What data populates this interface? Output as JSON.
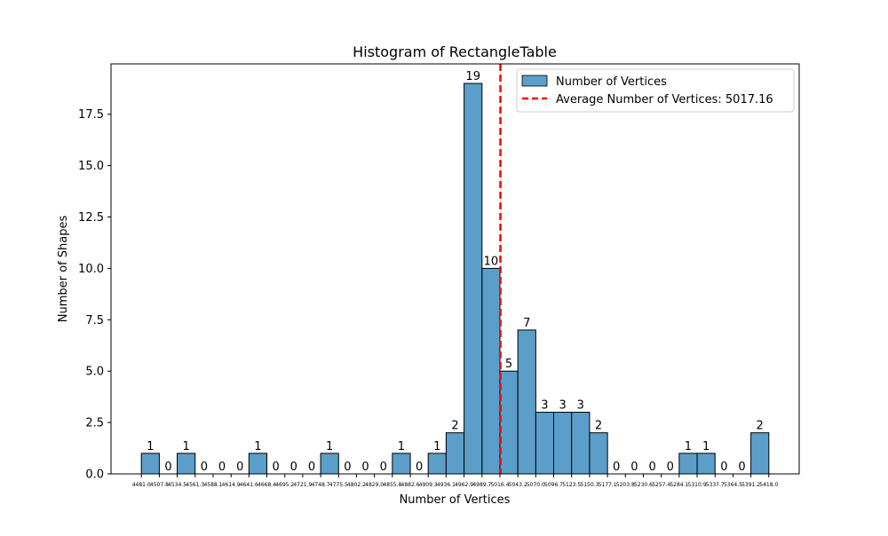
{
  "chart_data": {
    "type": "bar",
    "title": "Histogram of RectangleTable",
    "xlabel": "Number of Vertices",
    "ylabel": "Number of Shapes",
    "ylim": [
      0,
      19.95
    ],
    "yticks": [
      "0.0",
      "2.5",
      "5.0",
      "7.5",
      "10.0",
      "12.5",
      "15.0",
      "17.5"
    ],
    "ytick_values": [
      0,
      2.5,
      5,
      7.5,
      10,
      12.5,
      15,
      17.5
    ],
    "bin_edges": [
      4481.0,
      4507.8,
      4534.5,
      4561.3,
      4588.1,
      4614.9,
      4641.6,
      4668.4,
      4695.2,
      4721.9,
      4748.7,
      4775.5,
      4802.2,
      4829.0,
      4855.8,
      4882.6,
      4909.3,
      4936.1,
      4962.9,
      4989.7,
      5016.4,
      5043.2,
      5070.0,
      5096.7,
      5123.5,
      5150.3,
      5177.1,
      5203.8,
      5230.6,
      5257.4,
      5284.1,
      5310.9,
      5337.7,
      5364.5,
      5391.2,
      5418.0
    ],
    "xtick_labels": [
      "4481.0",
      "4507.8",
      "4534.5",
      "4561.3",
      "4588.1",
      "4614.9",
      "4641.6",
      "4668.4",
      "4695.2",
      "4721.9",
      "4748.7",
      "4775.5",
      "4802.2",
      "4829.0",
      "4855.8",
      "4882.6",
      "4909.3",
      "4936.1",
      "4962.9",
      "4989.7",
      "5016.4",
      "5043.2",
      "5070.0",
      "5096.7",
      "5123.5",
      "5150.3",
      "5177.1",
      "5203.8",
      "5230.6",
      "5257.4",
      "5284.1",
      "5310.9",
      "5337.7",
      "5364.5",
      "5391.2",
      "5418.0"
    ],
    "values": [
      1,
      0,
      1,
      0,
      0,
      0,
      1,
      0,
      0,
      0,
      1,
      0,
      0,
      0,
      1,
      0,
      1,
      2,
      19,
      10,
      5,
      7,
      3,
      3,
      3,
      2,
      0,
      0,
      0,
      0,
      1,
      1,
      0,
      0,
      2
    ],
    "average": 5017.16,
    "series": [
      {
        "name": "Number of Vertices",
        "kind": "histogram",
        "color": "#5b9ec9"
      },
      {
        "name": "Average Number of Vertices: 5017.16",
        "kind": "vline",
        "color": "#ff0000"
      }
    ],
    "legend_position": "top-right",
    "grid": false
  }
}
